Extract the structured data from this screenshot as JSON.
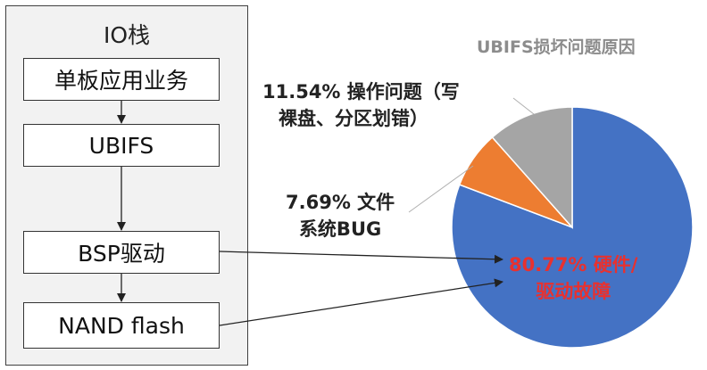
{
  "io_stack": {
    "title": "IO栈",
    "layers": [
      "单板应用业务",
      "UBIFS",
      "BSP驱动",
      "NAND flash"
    ]
  },
  "chart_data": {
    "type": "pie",
    "title": "UBIFS损坏问题原因",
    "slices": [
      {
        "line1": "80.77% 硬件/",
        "line2": "驱动故障",
        "value": 80.77,
        "color": "#4472c4",
        "label_color": "#e8312f"
      },
      {
        "line1": "7.69% 文件",
        "line2": "系统BUG",
        "value": 7.69,
        "color": "#ed7d31",
        "label_color": "#222222"
      },
      {
        "line1": "11.54% 操作问题（写",
        "line2": "裸盘、分区划错）",
        "value": 11.54,
        "color": "#a5a5a5",
        "label_color": "#222222"
      }
    ]
  }
}
